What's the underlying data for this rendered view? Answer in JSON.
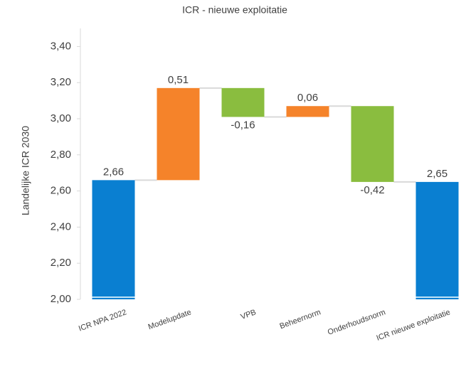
{
  "chart_data": {
    "type": "waterfall",
    "title": "ICR - nieuwe exploitatie",
    "y_label": "Landelijke ICR 2030",
    "categories": [
      "ICR NPA 2022",
      "Modelupdate",
      "VPB",
      "Beheernorm",
      "Onderhoudsnorm",
      "ICR nieuwe exploitatie"
    ],
    "values": [
      2.66,
      0.51,
      -0.16,
      0.06,
      -0.42,
      2.65
    ],
    "value_labels": [
      "2,66",
      "0,51",
      "-0,16",
      "0,06",
      "-0,42",
      "2,65"
    ],
    "colors": [
      "#0a7fd1",
      "#f5832a",
      "#8abd3f",
      "#f5832a",
      "#8abd3f",
      "#0a7fd1"
    ],
    "ylim": [
      2,
      3.5
    ],
    "yticks": [
      {
        "value": 2,
        "label": "2,00"
      },
      {
        "value": 2.2,
        "label": "2,20"
      },
      {
        "value": 2.4,
        "label": "2,40"
      },
      {
        "value": 2.6,
        "label": "2,60"
      },
      {
        "value": 2.8,
        "label": "2,80"
      },
      {
        "value": 3,
        "label": "3,00"
      },
      {
        "value": 3.2,
        "label": "3,20"
      },
      {
        "value": 3.4,
        "label": "3,40"
      }
    ]
  }
}
